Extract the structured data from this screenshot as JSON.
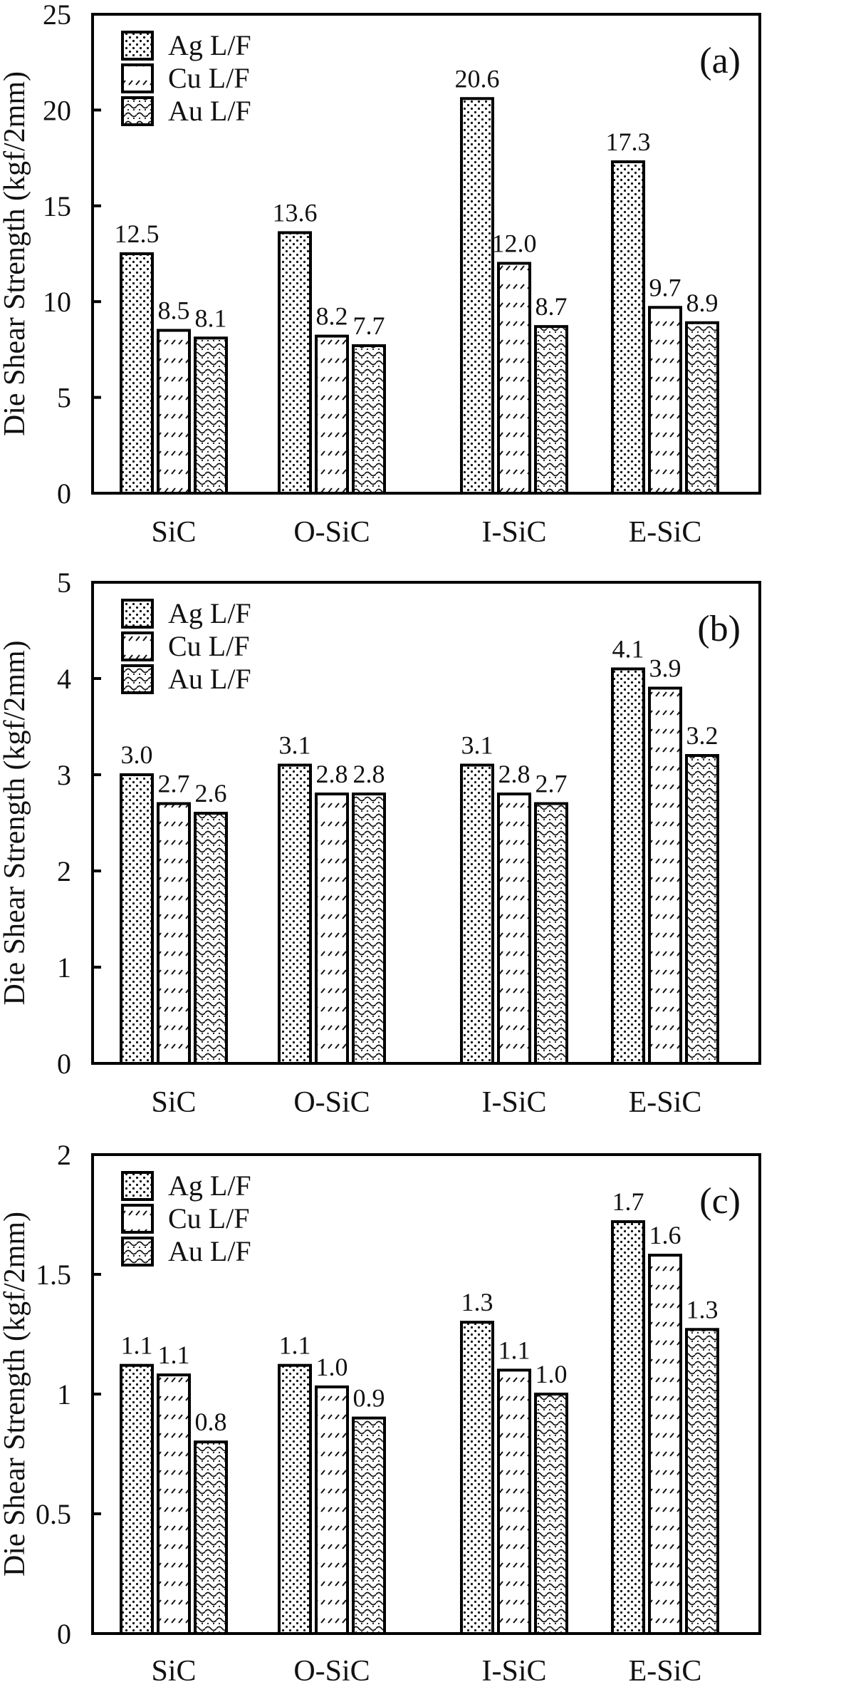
{
  "chart_data": [
    {
      "type": "bar",
      "panel_tag": "(a)",
      "title": "",
      "xlabel": "",
      "ylabel": "Die Shear Strength (kgf/2mm)",
      "ylim": [
        0,
        25
      ],
      "yticks": [
        0,
        5,
        10,
        15,
        20,
        25
      ],
      "ytick_labels": [
        "0",
        "5",
        "10",
        "15",
        "20",
        "25"
      ],
      "categories": [
        "SiC",
        "O-SiC",
        "I-SiC",
        "E-SiC"
      ],
      "legend_position": "top-left",
      "grid": false,
      "series": [
        {
          "name": "Ag L/F",
          "pattern": "dots",
          "values": [
            12.5,
            13.6,
            20.6,
            17.3
          ],
          "labels": [
            "12.5",
            "13.6",
            "20.6",
            "17.3"
          ]
        },
        {
          "name": "Cu L/F",
          "pattern": "dashes",
          "values": [
            8.5,
            8.2,
            12.0,
            9.7
          ],
          "labels": [
            "8.5",
            "8.2",
            "12.0",
            "9.7"
          ]
        },
        {
          "name": "Au L/F",
          "pattern": "waves",
          "values": [
            8.1,
            7.7,
            8.7,
            8.9
          ],
          "labels": [
            "8.1",
            "7.7",
            "8.7",
            "8.9"
          ]
        }
      ]
    },
    {
      "type": "bar",
      "panel_tag": "(b)",
      "title": "",
      "xlabel": "",
      "ylabel": "Die Shear Strength (kgf/2mm)",
      "ylim": [
        0,
        5
      ],
      "yticks": [
        0,
        1,
        2,
        3,
        4,
        5
      ],
      "ytick_labels": [
        "0",
        "1",
        "2",
        "3",
        "4",
        "5"
      ],
      "categories": [
        "SiC",
        "O-SiC",
        "I-SiC",
        "E-SiC"
      ],
      "legend_position": "top-left",
      "grid": false,
      "series": [
        {
          "name": "Ag L/F",
          "pattern": "dots",
          "values": [
            3.0,
            3.1,
            3.1,
            4.1
          ],
          "labels": [
            "3.0",
            "3.1",
            "3.1",
            "4.1"
          ]
        },
        {
          "name": "Cu L/F",
          "pattern": "dashes",
          "values": [
            2.7,
            2.8,
            2.8,
            3.9
          ],
          "labels": [
            "2.7",
            "2.8",
            "2.8",
            "3.9"
          ]
        },
        {
          "name": "Au L/F",
          "pattern": "waves",
          "values": [
            2.6,
            2.8,
            2.7,
            3.2
          ],
          "labels": [
            "2.6",
            "2.8",
            "2.7",
            "3.2"
          ]
        }
      ]
    },
    {
      "type": "bar",
      "panel_tag": "(c)",
      "title": "",
      "xlabel": "",
      "ylabel": "Die Shear Strength (kgf/2mm)",
      "ylim": [
        0,
        2
      ],
      "yticks": [
        0,
        0.5,
        1,
        1.5,
        2
      ],
      "ytick_labels": [
        "0",
        "0.5",
        "1",
        "1.5",
        "2"
      ],
      "categories": [
        "SiC",
        "O-SiC",
        "I-SiC",
        "E-SiC"
      ],
      "legend_position": "top-left",
      "grid": false,
      "series": [
        {
          "name": "Ag L/F",
          "pattern": "dots",
          "values": [
            1.12,
            1.12,
            1.3,
            1.72
          ],
          "labels": [
            "1.1",
            "1.1",
            "1.3",
            "1.7"
          ]
        },
        {
          "name": "Cu L/F",
          "pattern": "dashes",
          "values": [
            1.08,
            1.03,
            1.1,
            1.58
          ],
          "labels": [
            "1.1",
            "1.0",
            "1.1",
            "1.6"
          ]
        },
        {
          "name": "Au L/F",
          "pattern": "waves",
          "values": [
            0.8,
            0.9,
            1.0,
            1.27
          ],
          "labels": [
            "0.8",
            "0.9",
            "1.0",
            "1.3"
          ]
        }
      ]
    }
  ]
}
